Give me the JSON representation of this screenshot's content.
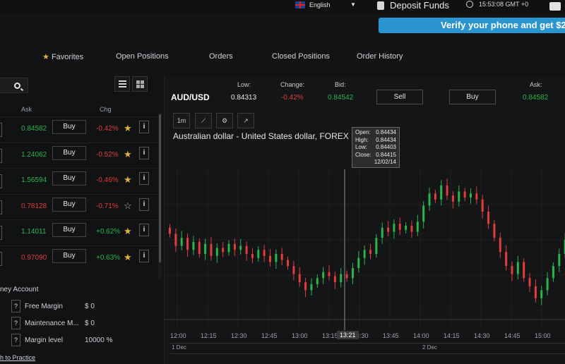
{
  "topbar": {
    "language": "English",
    "deposit_label": "Deposit Funds",
    "time": "15:53:08 GMT +0"
  },
  "banner": {
    "text": "Verify your phone and get $2"
  },
  "nav": {
    "tabs": [
      {
        "label": "Favorites"
      },
      {
        "label": "Open Positions"
      },
      {
        "label": "Orders"
      },
      {
        "label": "Closed Positions"
      },
      {
        "label": "Order History"
      }
    ]
  },
  "watchlist": {
    "columns": {
      "ask": "Ask",
      "chg": "Chg"
    },
    "rows": [
      {
        "ask": "0.84582",
        "ask_color": "green",
        "buy": "Buy",
        "chg": "-0.42%",
        "chg_color": "red",
        "star": "filled"
      },
      {
        "ask": "1.24062",
        "ask_color": "green",
        "buy": "Buy",
        "chg": "-0.52%",
        "chg_color": "red",
        "star": "filled"
      },
      {
        "ask": "1.56594",
        "ask_color": "green",
        "buy": "Buy",
        "chg": "-0.46%",
        "chg_color": "red",
        "star": "filled"
      },
      {
        "ask": "0.78128",
        "ask_color": "red",
        "buy": "Buy",
        "chg": "-0.71%",
        "chg_color": "red",
        "star": "empty"
      },
      {
        "ask": "1.14011",
        "ask_color": "green",
        "buy": "Buy",
        "chg": "+0.62%",
        "chg_color": "green",
        "star": "filled"
      },
      {
        "ask": "0.97090",
        "ask_color": "red",
        "buy": "Buy",
        "chg": "+0.63%",
        "chg_color": "green",
        "star": "filled"
      }
    ]
  },
  "account": {
    "title": "ney Account",
    "rows": [
      {
        "label": "Free Margin",
        "value": "$ 0"
      },
      {
        "label": "Maintenance M...",
        "value": "$ 0"
      },
      {
        "label": "Margin level",
        "value": "10000 %"
      }
    ],
    "practice_link": "h to Practice"
  },
  "quote": {
    "symbol": "AUD/USD",
    "low_label": "Low:",
    "low": "0.84313",
    "change_label": "Change:",
    "change": "-0.42%",
    "bid_label": "Bid:",
    "bid": "0.84542",
    "ask_label": "Ask:",
    "ask": "0.84582",
    "sell": "Sell",
    "buy": "Buy"
  },
  "chart_tools": {
    "timeframe": "1m"
  },
  "chart_data": {
    "type": "candlestick",
    "title": "Australian dollar - United States dollar, FOREX",
    "tooltip": {
      "open_label": "Open:",
      "open": "0.84434",
      "high_label": "High:",
      "high": "0.84434",
      "low_label": "Low:",
      "low": "0.84403",
      "close_label": "Close:",
      "close": "0.84415",
      "date": "12/02/14"
    },
    "x_ticks": [
      "12:00",
      "12:15",
      "12:30",
      "12:45",
      "13:00",
      "13:15",
      "13:30",
      "13:45",
      "14:00",
      "14:15",
      "14:30",
      "14:45",
      "15:00"
    ],
    "crosshair_time": "13:21",
    "navigator_dates": [
      "1 Dec",
      "2 Dec"
    ],
    "up_color": "#2ab54a",
    "down_color": "#e23c3c",
    "closes": [
      0.8438,
      0.8432,
      0.8436,
      0.843,
      0.8434,
      0.8428,
      0.8433,
      0.8427,
      0.8431,
      0.8429,
      0.8433,
      0.843,
      0.8432,
      0.8428,
      0.8426,
      0.843,
      0.8427,
      0.8424,
      0.8428,
      0.8425,
      0.8422,
      0.8418,
      0.8414,
      0.841,
      0.8413,
      0.8416,
      0.8419,
      0.8417,
      0.8414,
      0.8418,
      0.8416,
      0.8421,
      0.8426,
      0.843,
      0.8428,
      0.8436,
      0.8441,
      0.8439,
      0.8443,
      0.844,
      0.8442,
      0.8439,
      0.8444,
      0.8452,
      0.8458,
      0.8455,
      0.8462,
      0.8457,
      0.8454,
      0.8459,
      0.8456,
      0.8458,
      0.8455,
      0.8449,
      0.8443,
      0.8436,
      0.8429,
      0.8422,
      0.8418,
      0.8424,
      0.8416,
      0.8412,
      0.8406,
      0.841,
      0.8416,
      0.8422,
      0.8428,
      0.8435
    ]
  }
}
